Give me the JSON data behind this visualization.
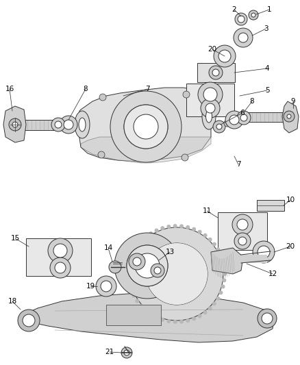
{
  "bg_color": "#ffffff",
  "fig_width": 4.38,
  "fig_height": 5.33,
  "dpi": 100,
  "text_color": "#000000",
  "line_color": "#333333",
  "font_size": 7.5,
  "lw": 0.7
}
